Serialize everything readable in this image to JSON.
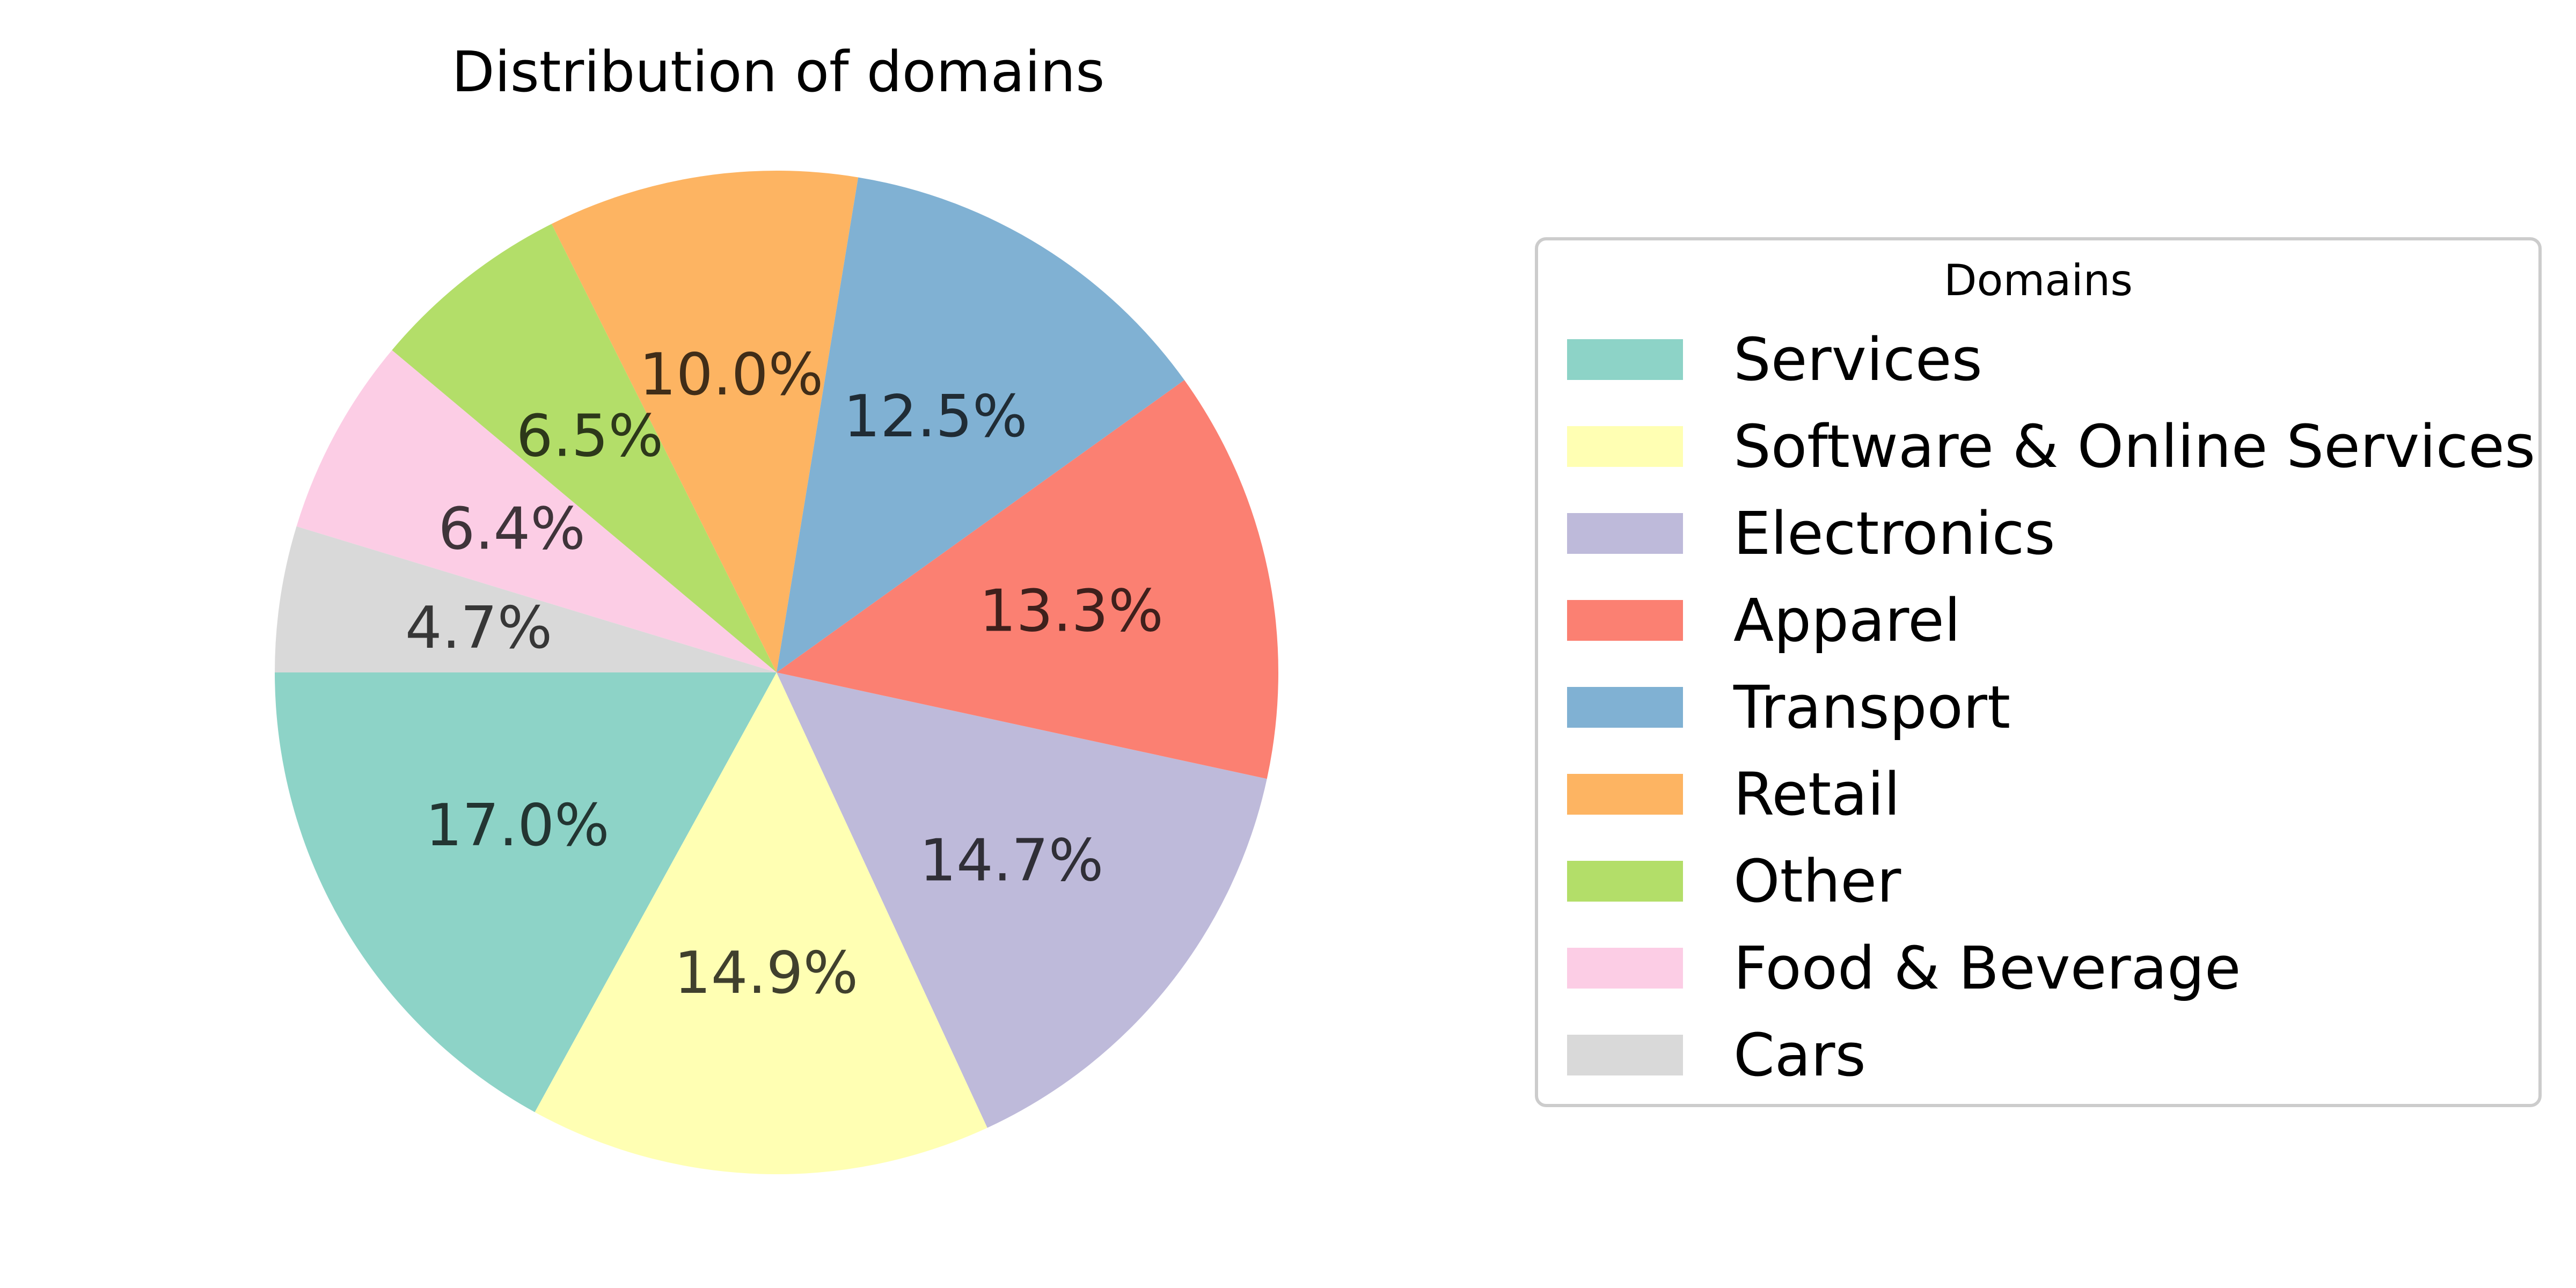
{
  "chart_data": {
    "type": "pie",
    "title": "Distribution of domains",
    "legend": {
      "title": "Domains",
      "placement": "right"
    },
    "start_angle_deg": 180,
    "direction": "counterclockwise",
    "slices": [
      {
        "label": "Services",
        "value": 17.0,
        "display": "17.0%",
        "color": "#8dd3c7"
      },
      {
        "label": "Software & Online Services",
        "value": 14.9,
        "display": "14.9%",
        "color": "#ffffb3"
      },
      {
        "label": "Electronics",
        "value": 14.7,
        "display": "14.7%",
        "color": "#bebada"
      },
      {
        "label": "Apparel",
        "value": 13.3,
        "display": "13.3%",
        "color": "#fb8072"
      },
      {
        "label": "Transport",
        "value": 12.5,
        "display": "12.5%",
        "color": "#80b1d3"
      },
      {
        "label": "Retail",
        "value": 10.0,
        "display": "10.0%",
        "color": "#fdb462"
      },
      {
        "label": "Other",
        "value": 6.5,
        "display": "6.5%",
        "color": "#b3de69"
      },
      {
        "label": "Food & Beverage",
        "value": 6.4,
        "display": "6.4%",
        "color": "#fccde5"
      },
      {
        "label": "Cars",
        "value": 4.7,
        "display": "4.7%",
        "color": "#d9d9d9"
      }
    ]
  }
}
